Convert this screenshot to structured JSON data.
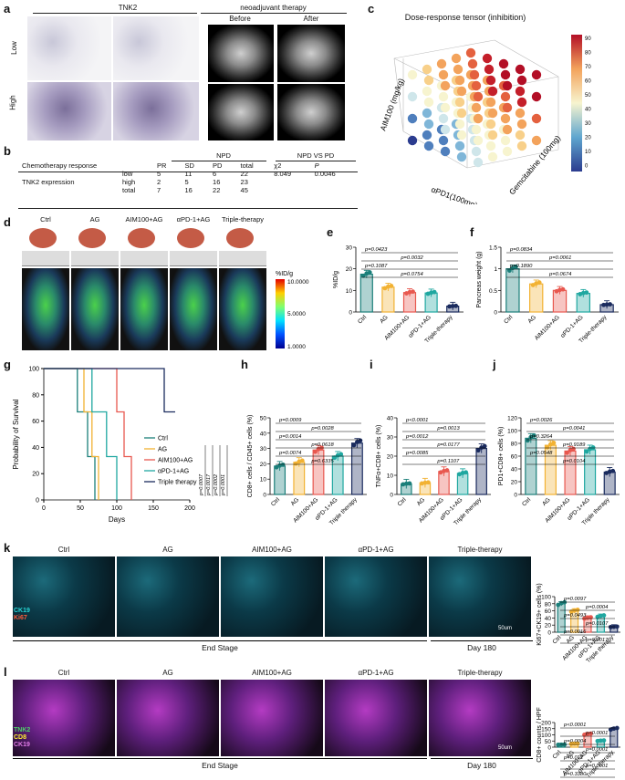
{
  "panel_labels": {
    "a": "a",
    "b": "b",
    "c": "c",
    "d": "d",
    "e": "e",
    "f": "f",
    "g": "g",
    "h": "h",
    "i": "i",
    "j": "j",
    "k": "k",
    "l": "l"
  },
  "panel_a": {
    "title_left": "TNK2",
    "title_right": "neoadjuvant therapy",
    "before": "Before",
    "after": "After",
    "row1": "Low",
    "row2": "High"
  },
  "panel_b": {
    "head_npd": "NPD",
    "head_npd_vs_pd": "NPD VS PD",
    "col_labels": [
      "Chemotherapy response",
      "PR",
      "SD",
      "PD",
      "total",
      "χ2",
      "P"
    ],
    "row_group": "TNK2 expression",
    "rows": [
      {
        "name": "low",
        "pr": "5",
        "sd": "11",
        "pd": "6",
        "total": "22",
        "chi": "8.049",
        "p": "0.0046"
      },
      {
        "name": "high",
        "pr": "2",
        "sd": "5",
        "pd": "16",
        "total": "23",
        "chi": "",
        "p": ""
      },
      {
        "name": "total",
        "pr": "7",
        "sd": "16",
        "pd": "22",
        "total": "45",
        "chi": "",
        "p": ""
      }
    ]
  },
  "panel_c": {
    "title": "Dose-response tensor (inhibition)",
    "xlabel": "αPD1(100mg)",
    "ylabel": "Gemcitabine (100mg)",
    "zlabel": "AIM100 (mg/kg)",
    "colorbar_ticks": [
      "90",
      "80",
      "70",
      "60",
      "50",
      "40",
      "30",
      "20",
      "10",
      "0"
    ]
  },
  "panel_d": {
    "groups": [
      "Ctrl",
      "AG",
      "AIM100+AG",
      "αPD-1+AG",
      "Triple-therapy"
    ],
    "colorbar_title": "%ID/g",
    "colorbar_ticks": [
      "10.0000",
      "5.0000",
      "1.0000"
    ],
    "ruler": "0 cm  1  2"
  },
  "categories": [
    "Ctrl",
    "AG",
    "AIM100+AG",
    "αPD-1+AG",
    "Triple-therapy"
  ],
  "categories_h": [
    "Ctrl",
    "AG",
    "AIM100+AG",
    "αPD-1+AG",
    "Triple therapy"
  ],
  "colors": {
    "ctrl": "#1b7f7a",
    "ag": "#f2b233",
    "aim": "#e8584f",
    "apd1": "#1fa7a0",
    "triple": "#1a2b5e"
  },
  "chart_data": [
    {
      "id": "e",
      "type": "bar",
      "ylabel": "%ID/g",
      "ylim": [
        0,
        30
      ],
      "yticks": [
        0,
        10,
        20,
        30
      ],
      "categories": [
        "Ctrl",
        "AG",
        "AIM100+AG",
        "αPD-1+AG",
        "Triple-therapy"
      ],
      "values": [
        17.5,
        11.5,
        9.0,
        8.8,
        2.7
      ],
      "annotations": [
        "p=0.0423",
        "p=0.0032",
        "p=0.1087",
        "p=0.0754"
      ]
    },
    {
      "id": "f",
      "type": "bar",
      "ylabel": "Pancreas weight (g)",
      "ylim": [
        0,
        1.5
      ],
      "yticks": [
        0.0,
        0.5,
        1.0,
        1.5
      ],
      "categories": [
        "Ctrl",
        "AG",
        "AIM100+AG",
        "αPD-1+AG",
        "Triple-therapy"
      ],
      "values": [
        1.0,
        0.65,
        0.5,
        0.43,
        0.17
      ],
      "annotations": [
        "p=0.0834",
        "p=0.0061",
        "p=0.1890",
        "p=0.0674"
      ]
    },
    {
      "id": "g",
      "type": "line",
      "ylabel": "Probability of Survival",
      "xlabel": "Days",
      "xlim": [
        0,
        200
      ],
      "ylim": [
        0,
        100
      ],
      "xticks": [
        0,
        50,
        100,
        150,
        200
      ],
      "yticks": [
        0,
        20,
        40,
        60,
        80,
        100
      ],
      "series": [
        {
          "name": "Ctrl",
          "x": [
            0,
            46,
            46,
            60,
            60,
            70,
            70
          ],
          "y": [
            100,
            100,
            67,
            67,
            33,
            33,
            0
          ]
        },
        {
          "name": "AG",
          "x": [
            0,
            55,
            55,
            66,
            66,
            75,
            75
          ],
          "y": [
            100,
            100,
            67,
            67,
            33,
            33,
            0
          ]
        },
        {
          "name": "AIM100+AG",
          "x": [
            0,
            100,
            100,
            110,
            110,
            120,
            120
          ],
          "y": [
            100,
            100,
            67,
            67,
            33,
            33,
            0
          ]
        },
        {
          "name": "αPD-1+AG",
          "x": [
            0,
            66,
            66,
            86,
            86,
            100,
            100
          ],
          "y": [
            100,
            100,
            67,
            67,
            33,
            33,
            0
          ]
        },
        {
          "name": "Triple therapy",
          "x": [
            0,
            165,
            165,
            180
          ],
          "y": [
            100,
            100,
            67,
            67
          ]
        }
      ],
      "annotations": [
        "p=0.0007",
        "p=0.0017",
        "p=0.0002",
        "p=0.0001"
      ]
    },
    {
      "id": "h",
      "type": "bar",
      "ylabel": "CD8+ cells / CD45+ cells (%)",
      "ylim": [
        0,
        50
      ],
      "yticks": [
        0,
        10,
        20,
        30,
        40,
        50
      ],
      "categories": [
        "Ctrl",
        "AG",
        "AIM100+AG",
        "αPD-1+AG",
        "Triple therapy"
      ],
      "values": [
        18.5,
        21,
        29,
        25,
        33.5
      ],
      "annotations": [
        "p=0.0009",
        "p=0.0028",
        "p=0.0014",
        "p=0.0618",
        "p=0.0074",
        "p=0.6335"
      ]
    },
    {
      "id": "i",
      "type": "bar",
      "ylabel": "TNFα+CD8+ cells (%)",
      "ylim": [
        0,
        40
      ],
      "yticks": [
        0,
        10,
        20,
        30,
        40
      ],
      "categories": [
        "Ctrl",
        "AG",
        "AIM100+AG",
        "αPD-1+AG",
        "Triple therapy"
      ],
      "values": [
        5.5,
        6.0,
        12.0,
        11.0,
        24.0
      ],
      "annotations": [
        "p<0.0001",
        "p=0.0013",
        "p=0.0012",
        "p=0.0177",
        "p=0.0085",
        "p=0.1107"
      ]
    },
    {
      "id": "j",
      "type": "bar",
      "ylabel": "PD1+CD8+ cells (%)",
      "ylim": [
        0,
        120
      ],
      "yticks": [
        0,
        20,
        40,
        60,
        80,
        100,
        120
      ],
      "categories": [
        "Ctrl",
        "AG",
        "AIM100+AG",
        "αPD-1+AG",
        "Triple therapy"
      ],
      "values": [
        88,
        77,
        68,
        70,
        35
      ],
      "annotations": [
        "p=0.0026",
        "p=0.0041",
        "p=0.3264",
        "p=0.9189",
        "p=0.0548",
        "p=0.0104"
      ]
    },
    {
      "id": "k",
      "type": "bar",
      "ylabel": "Ki67+CK19+ cells (%)",
      "ylim": [
        0,
        100
      ],
      "yticks": [
        0,
        20,
        40,
        60,
        80,
        100
      ],
      "categories": [
        "Ctrl",
        "AG",
        "AIM100+AG",
        "αPD-1+AG",
        "Triple therapy"
      ],
      "values": [
        80,
        60,
        40,
        45,
        15
      ],
      "annotations": [
        "p=0.0097",
        "p=0.0004",
        "p=0.0493",
        "p=0.0107",
        "p=0.0016",
        "p=0.0017"
      ]
    },
    {
      "id": "l",
      "type": "bar",
      "ylabel": "CD8+ counts / HPF",
      "ylim": [
        0,
        200
      ],
      "yticks": [
        0,
        50,
        100,
        150,
        200
      ],
      "categories": [
        "Ctrl",
        "AG",
        "AIM100+AG",
        "αPD-1+AG",
        "Triple therapy"
      ],
      "values": [
        20,
        28,
        105,
        52,
        148
      ],
      "annotations": [
        "p<0.0001",
        "p<0.0001",
        "p=0.0004",
        "p=0.0001",
        "p=0.012",
        "p=0.0001",
        "p=0.3380"
      ]
    }
  ],
  "panel_k": {
    "groups": [
      "Ctrl",
      "AG",
      "AIM100+AG",
      "αPD-1+AG",
      "Triple-therapy"
    ],
    "legend1": "CK19",
    "legend2": "Ki67",
    "scale": "50um",
    "end_stage": "End Stage",
    "day180": "Day 180"
  },
  "panel_l": {
    "groups": [
      "Ctrl",
      "AG",
      "AIM100+AG",
      "αPD-1+AG",
      "Triple-therapy"
    ],
    "legend1": "TNK2",
    "legend2": "CD8",
    "legend3": "CK19",
    "scale": "50um",
    "end_stage": "End Stage",
    "day180": "Day 180"
  }
}
